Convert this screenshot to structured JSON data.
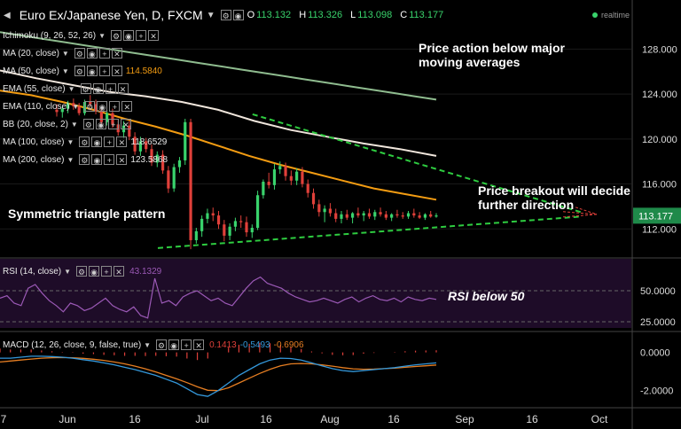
{
  "header": {
    "symbol": "Euro Ex/Japanese Yen, D, FXCM",
    "ohlc": [
      {
        "k": "O",
        "v": "113.132"
      },
      {
        "k": "H",
        "v": "113.326"
      },
      {
        "k": "L",
        "v": "113.098"
      },
      {
        "k": "C",
        "v": "113.177"
      }
    ],
    "realtime": "realtime"
  },
  "indicators": [
    {
      "label": "Ichimoku (9, 26, 52, 26)",
      "value": "",
      "color": "#e8e8e8"
    },
    {
      "label": "MA (20, close)",
      "value": "",
      "color": "#e8e8e8"
    },
    {
      "label": "MA (50, close)",
      "value": "114.5840",
      "color": "#f39c12"
    },
    {
      "label": "EMA (55, close)",
      "value": "",
      "color": "#e8e8e8"
    },
    {
      "label": "EMA (110, close)",
      "value": "",
      "color": "#e8e8e8"
    },
    {
      "label": "BB (20, close, 2)",
      "value": "",
      "color": "#e8e8e8"
    },
    {
      "label": "MA (100, close)",
      "value": "118.6529",
      "color": "#e8e8e8"
    },
    {
      "label": "MA (200, close)",
      "value": "123.5868",
      "color": "#e8e8e8"
    }
  ],
  "annotations": {
    "ma_note": [
      "Price action below major",
      "moving averages"
    ],
    "breakout_note": [
      "Price breakout will decide",
      "further direction"
    ],
    "triangle_note": "Symmetric triangle pattern",
    "rsi_note": "RSI below 50"
  },
  "rsi": {
    "label": "RSI (14, close)",
    "value": "43.1329"
  },
  "macd": {
    "label": "MACD (12, 26, close, 9, false, true)",
    "v1": "0.1413",
    "v2": "-0.5493",
    "v3": "-0.6906"
  },
  "colors": {
    "up": "#39d36c",
    "down": "#e0403a",
    "ma100": "#f0e6dc",
    "ma200": "#8fbc8f",
    "ma50": "#f39c12",
    "rsi": "#9b59b6",
    "macd": "#3498db",
    "signal": "#e67e22",
    "hist": "#e0403a",
    "triangle": "#2ecc40",
    "breakout": "#e0403a"
  },
  "chart_data": [
    {
      "type": "candlestick",
      "title": "Euro Ex/Japanese Yen, D, FXCM",
      "x_tick_labels": [
        "7",
        "Jun",
        "16",
        "Jul",
        "16",
        "Aug",
        "16",
        "Sep",
        "16",
        "Oct"
      ],
      "y_tick_labels": [
        "112.000",
        "116.000",
        "120.000",
        "124.000",
        "128.000"
      ],
      "ylim": [
        109.5,
        130.0
      ],
      "last_price": "113.177",
      "candles": [
        [
          122.6,
          123.1,
          122.0,
          122.4
        ],
        [
          122.4,
          122.9,
          121.9,
          122.7
        ],
        [
          122.7,
          123.4,
          122.3,
          123.2
        ],
        [
          123.2,
          123.6,
          122.6,
          122.9
        ],
        [
          122.9,
          123.2,
          122.1,
          122.3
        ],
        [
          122.3,
          123.5,
          122.1,
          123.3
        ],
        [
          123.3,
          123.9,
          122.9,
          123.1
        ],
        [
          123.1,
          123.5,
          122.2,
          122.5
        ],
        [
          122.5,
          122.9,
          121.2,
          121.5
        ],
        [
          121.5,
          122.6,
          121.2,
          122.3
        ],
        [
          122.3,
          122.7,
          121.0,
          121.3
        ],
        [
          121.3,
          121.7,
          120.3,
          120.6
        ],
        [
          120.6,
          121.6,
          120.1,
          121.2
        ],
        [
          121.2,
          121.6,
          119.9,
          120.2
        ],
        [
          120.2,
          120.6,
          118.6,
          118.9
        ],
        [
          118.9,
          120.2,
          118.5,
          119.8
        ],
        [
          119.8,
          120.1,
          118.8,
          119.1
        ],
        [
          119.1,
          119.5,
          117.6,
          117.9
        ],
        [
          117.9,
          118.9,
          117.5,
          118.6
        ],
        [
          118.6,
          119.0,
          116.9,
          117.2
        ],
        [
          117.2,
          117.6,
          115.2,
          115.6
        ],
        [
          115.6,
          117.8,
          115.3,
          117.5
        ],
        [
          117.5,
          118.4,
          117.0,
          118.1
        ],
        [
          118.1,
          121.8,
          117.7,
          121.5
        ],
        [
          121.5,
          121.8,
          110.2,
          111.0
        ],
        [
          111.0,
          112.1,
          110.7,
          111.8
        ],
        [
          111.8,
          113.2,
          111.3,
          112.9
        ],
        [
          112.9,
          113.8,
          112.5,
          113.4
        ],
        [
          113.4,
          113.9,
          112.7,
          113.2
        ],
        [
          113.2,
          113.6,
          112.0,
          112.4
        ],
        [
          112.4,
          112.8,
          110.9,
          111.4
        ],
        [
          111.4,
          112.5,
          111.0,
          112.2
        ],
        [
          112.2,
          113.0,
          111.8,
          112.7
        ],
        [
          112.7,
          113.2,
          112.1,
          112.6
        ],
        [
          112.6,
          113.1,
          111.3,
          111.7
        ],
        [
          111.7,
          112.4,
          111.2,
          112.1
        ],
        [
          112.1,
          115.4,
          111.9,
          115.0
        ],
        [
          115.0,
          116.4,
          114.7,
          116.2
        ],
        [
          116.2,
          117.0,
          115.6,
          115.9
        ],
        [
          115.9,
          117.8,
          115.5,
          117.3
        ],
        [
          117.3,
          118.0,
          116.9,
          117.6
        ],
        [
          117.6,
          117.9,
          116.3,
          116.7
        ],
        [
          116.7,
          117.2,
          115.9,
          116.3
        ],
        [
          116.3,
          117.4,
          115.9,
          117.1
        ],
        [
          117.1,
          117.5,
          115.7,
          116.0
        ],
        [
          116.0,
          116.4,
          114.8,
          115.2
        ],
        [
          115.2,
          115.6,
          113.8,
          114.2
        ],
        [
          114.2,
          114.6,
          113.1,
          113.5
        ],
        [
          113.5,
          114.1,
          112.6,
          113.8
        ],
        [
          113.8,
          114.3,
          113.1,
          113.4
        ],
        [
          113.4,
          113.8,
          112.6,
          112.9
        ],
        [
          112.9,
          113.6,
          112.5,
          113.3
        ],
        [
          113.3,
          113.7,
          112.8,
          113.0
        ],
        [
          113.0,
          113.5,
          112.5,
          113.4
        ],
        [
          113.4,
          113.9,
          113.0,
          113.2
        ],
        [
          113.2,
          113.6,
          112.7,
          113.4
        ],
        [
          113.4,
          113.8,
          112.9,
          113.1
        ],
        [
          113.1,
          113.7,
          112.8,
          113.5
        ],
        [
          113.5,
          113.9,
          113.1,
          113.3
        ],
        [
          113.3,
          113.6,
          112.8,
          113.0
        ],
        [
          113.0,
          113.4,
          112.7,
          113.3
        ],
        [
          113.3,
          113.7,
          113.0,
          113.2
        ],
        [
          113.2,
          113.5,
          112.9,
          113.1
        ],
        [
          113.1,
          113.6,
          112.9,
          113.4
        ],
        [
          113.4,
          113.8,
          113.0,
          113.2
        ],
        [
          113.2,
          113.5,
          112.9,
          113.0
        ],
        [
          113.0,
          113.4,
          112.8,
          113.3
        ],
        [
          113.3,
          113.6,
          113.0,
          113.1
        ],
        [
          113.1,
          113.4,
          113.0,
          113.2
        ]
      ],
      "series": [
        {
          "name": "MA (200, close)",
          "values": [
            129.5,
            129.2,
            128.9,
            128.6,
            128.3,
            128.0,
            127.7,
            127.4,
            127.1,
            126.8,
            126.5,
            126.2,
            125.9,
            125.6,
            125.3,
            125.0,
            124.7,
            124.4,
            124.1,
            123.8,
            123.5
          ]
        },
        {
          "name": "MA (100, close)",
          "values": [
            126.1,
            125.4,
            124.8,
            124.2,
            123.8,
            123.3,
            122.6,
            121.6,
            120.8,
            120.2,
            119.6,
            119.1,
            118.5
          ]
        },
        {
          "name": "MA (50, close)",
          "values": [
            124.3,
            123.9,
            123.3,
            122.6,
            121.8,
            121.1,
            120.3,
            119.4,
            118.5,
            117.7,
            117.0,
            116.3,
            115.6,
            115.1,
            114.6
          ]
        }
      ],
      "triangle": {
        "upper": [
          [
            0.4,
            122.2
          ],
          [
            0.92,
            113.5
          ]
        ],
        "lower": [
          [
            0.25,
            110.3
          ],
          [
            0.92,
            113.1
          ]
        ]
      }
    },
    {
      "type": "line",
      "title": "RSI (14, close)",
      "y_tick_labels": [
        "25.0000",
        "50.0000"
      ],
      "ylim": [
        20,
        75
      ],
      "values": [
        44,
        46,
        40,
        38,
        52,
        55,
        48,
        42,
        38,
        33,
        40,
        38,
        34,
        36,
        40,
        44,
        38,
        35,
        33,
        37,
        30,
        28,
        60,
        40,
        42,
        38,
        45,
        48,
        50,
        46,
        42,
        44,
        40,
        38,
        45,
        52,
        58,
        61,
        56,
        54,
        52,
        48,
        45,
        43,
        41,
        42,
        44,
        42,
        40,
        43,
        45,
        41,
        44,
        46,
        43,
        42,
        44,
        41,
        45,
        43,
        42,
        44,
        43
      ]
    },
    {
      "type": "line",
      "title": "MACD (12, 26, close, 9, false, true)",
      "y_tick_labels": [
        "0.0000",
        "-2.0000"
      ],
      "ylim": [
        -2.8,
        1.0
      ],
      "macd": [
        -0.3,
        -0.3,
        -0.25,
        -0.2,
        -0.2,
        -0.22,
        -0.25,
        -0.3,
        -0.38,
        -0.45,
        -0.55,
        -0.65,
        -0.78,
        -0.9,
        -1.05,
        -1.2,
        -1.4,
        -1.6,
        -1.9,
        -2.2,
        -2.3,
        -2.0,
        -1.6,
        -1.2,
        -0.9,
        -0.6,
        -0.4,
        -0.3,
        -0.32,
        -0.4,
        -0.55,
        -0.7,
        -0.85,
        -0.95,
        -1.0,
        -0.95,
        -0.9,
        -0.85,
        -0.8,
        -0.72,
        -0.65,
        -0.6,
        -0.55
      ],
      "signal": [
        -0.5,
        -0.45,
        -0.4,
        -0.35,
        -0.3,
        -0.28,
        -0.27,
        -0.28,
        -0.31,
        -0.36,
        -0.42,
        -0.5,
        -0.6,
        -0.72,
        -0.86,
        -1.02,
        -1.2,
        -1.38,
        -1.58,
        -1.8,
        -1.98,
        -2.0,
        -1.85,
        -1.6,
        -1.35,
        -1.1,
        -0.88,
        -0.7,
        -0.6,
        -0.58,
        -0.6,
        -0.65,
        -0.72,
        -0.8,
        -0.86,
        -0.88,
        -0.87,
        -0.85,
        -0.82,
        -0.78,
        -0.74,
        -0.7,
        -0.66
      ],
      "hist": [
        0.2,
        0.15,
        0.15,
        0.15,
        0.1,
        0.06,
        0.02,
        -0.02,
        -0.07,
        -0.09,
        -0.13,
        -0.15,
        -0.18,
        -0.18,
        -0.19,
        -0.18,
        -0.2,
        -0.22,
        -0.32,
        -0.4,
        -0.32,
        0.0,
        0.25,
        0.4,
        0.45,
        0.5,
        0.48,
        0.4,
        0.28,
        0.18,
        0.05,
        -0.05,
        -0.13,
        -0.15,
        -0.14,
        -0.07,
        -0.03,
        0.0,
        0.02,
        0.06,
        0.09,
        0.1,
        0.11
      ]
    }
  ]
}
